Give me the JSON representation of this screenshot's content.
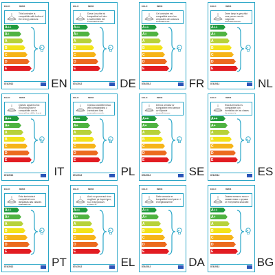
{
  "header": {
    "brand": "EGLO",
    "code": "89833"
  },
  "footer": {
    "regulation": "874/2012"
  },
  "classes": [
    {
      "label": "A++",
      "color": "#1f9a3c"
    },
    {
      "label": "A+",
      "color": "#4fb341"
    },
    {
      "label": "A",
      "color": "#b7d23a"
    },
    {
      "label": "B",
      "color": "#f3e31a"
    },
    {
      "label": "C",
      "color": "#f6b418"
    },
    {
      "label": "D",
      "color": "#ec6a1f"
    },
    {
      "label": "E",
      "color": "#e21c22"
    }
  ],
  "labels": [
    {
      "lang": "EN",
      "text": "This luminaire is compatible with bulbs of the energy classes:"
    },
    {
      "lang": "DE",
      "text": "Diese Leuchte ist kompatibel mit den Leuchtmitteln der Energieklassen:"
    },
    {
      "lang": "FR",
      "text": "Ce luminaire est compatible avec les ampoules des classes énergétiques:"
    },
    {
      "lang": "NL",
      "text": "Deze lamp is geschikt voor peren van de volgende energieklassen:"
    },
    {
      "lang": "IT",
      "text": "Questo apparecchio d'illuminazione è compatibile con le lampadine delle classi energetiche:"
    },
    {
      "lang": "PL",
      "text": "Oprawa oświetleniowa jest kompatybilna z żarówkami klas energetycznych:"
    },
    {
      "lang": "SE",
      "text": "Denna armatur är kompatibel med lampor av följande energiklasser:"
    },
    {
      "lang": "ES",
      "text": "Esta luminaria es compatible con bombillas de las clases de energía:"
    },
    {
      "lang": "PT",
      "text": "Esta luminária é compatível com lâmpadas das classes energéticas:"
    },
    {
      "lang": "EL",
      "text": "Αυτό το φωτιστικό είναι συμβατό με λαμπτήρες των ενεργειακών κλάσεων:"
    },
    {
      "lang": "DA",
      "text": "Dette armatur er kompatibel med pærer i energiklasserne:"
    },
    {
      "lang": "BG",
      "text": "Осветителното тяло е съвместимо с крушки от енергийни класове:"
    }
  ]
}
